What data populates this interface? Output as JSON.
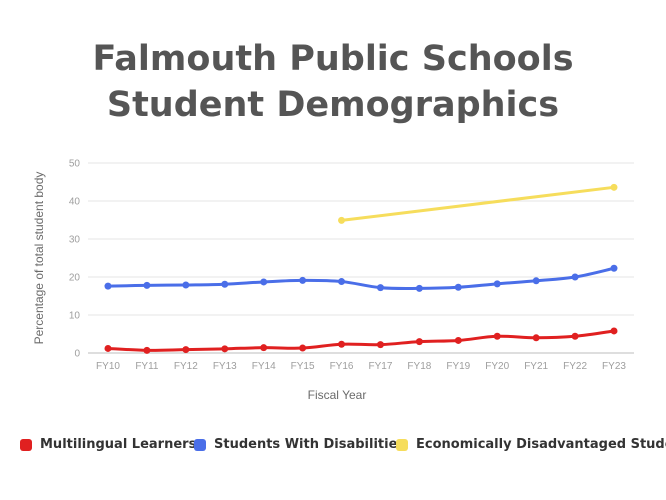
{
  "chart_data": {
    "type": "line",
    "title_lines": [
      "Falmouth Public Schools",
      "Student Demographics"
    ],
    "xlabel": "Fiscal Year",
    "ylabel": "Percentage of total student body",
    "categories": [
      "FY10",
      "FY11",
      "FY12",
      "FY13",
      "FY14",
      "FY15",
      "FY16",
      "FY17",
      "FY18",
      "FY19",
      "FY20",
      "FY21",
      "FY22",
      "FY23"
    ],
    "yticks": [
      0,
      10,
      20,
      30,
      40,
      50
    ],
    "ylim": [
      0,
      50
    ],
    "grid": true,
    "legend_position": "bottom",
    "series": [
      {
        "name": "Multilingual Learners",
        "color": "#e02020",
        "markers": true,
        "values": [
          1.2,
          0.7,
          0.9,
          1.1,
          1.4,
          1.3,
          2.3,
          2.2,
          3.0,
          3.3,
          4.4,
          4.0,
          4.4,
          5.8
        ]
      },
      {
        "name": "Students With Disabilities",
        "color": "#4a6ee8",
        "markers": true,
        "values": [
          17.6,
          17.8,
          17.9,
          18.1,
          18.7,
          19.1,
          18.8,
          17.2,
          17.0,
          17.3,
          18.2,
          19.0,
          20.0,
          22.3
        ]
      },
      {
        "name": "Economically Disadvantaged Students",
        "color": "#f6dd5c",
        "markers": true,
        "values": [
          null,
          null,
          null,
          null,
          null,
          null,
          34.9,
          null,
          null,
          null,
          null,
          null,
          null,
          43.6
        ],
        "connect_gaps": true
      }
    ]
  }
}
